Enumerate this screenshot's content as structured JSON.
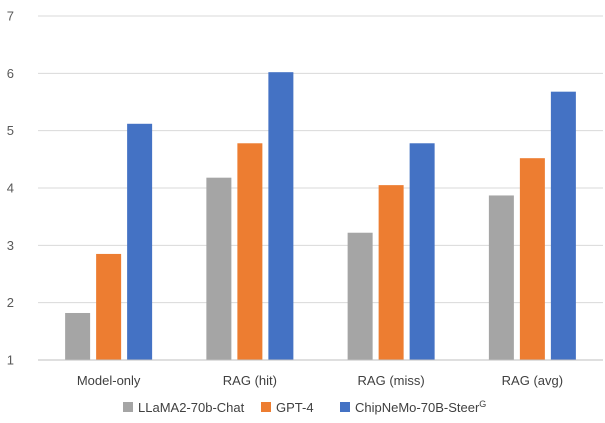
{
  "chart_data": {
    "type": "bar",
    "title": "",
    "xlabel": "",
    "ylabel": "",
    "categories": [
      "Model-only",
      "RAG (hit)",
      "RAG (miss)",
      "RAG (avg)"
    ],
    "series": [
      {
        "name": "LLaMA2-70b-Chat",
        "color": "#a5a5a5",
        "values": [
          1.82,
          4.18,
          3.22,
          3.87
        ]
      },
      {
        "name": "GPT-4",
        "color": "#ed7d31",
        "values": [
          2.85,
          4.78,
          4.05,
          4.52
        ]
      },
      {
        "name": "ChipNeMo-70B-Steer",
        "name_superscript": "G",
        "color": "#4472c4",
        "values": [
          5.12,
          6.02,
          4.78,
          5.68
        ]
      }
    ],
    "ylim": [
      1,
      7
    ],
    "yticks": [
      "1",
      "2",
      "3",
      "4",
      "5",
      "6",
      "7"
    ],
    "grid": true,
    "legend_position": "bottom"
  }
}
